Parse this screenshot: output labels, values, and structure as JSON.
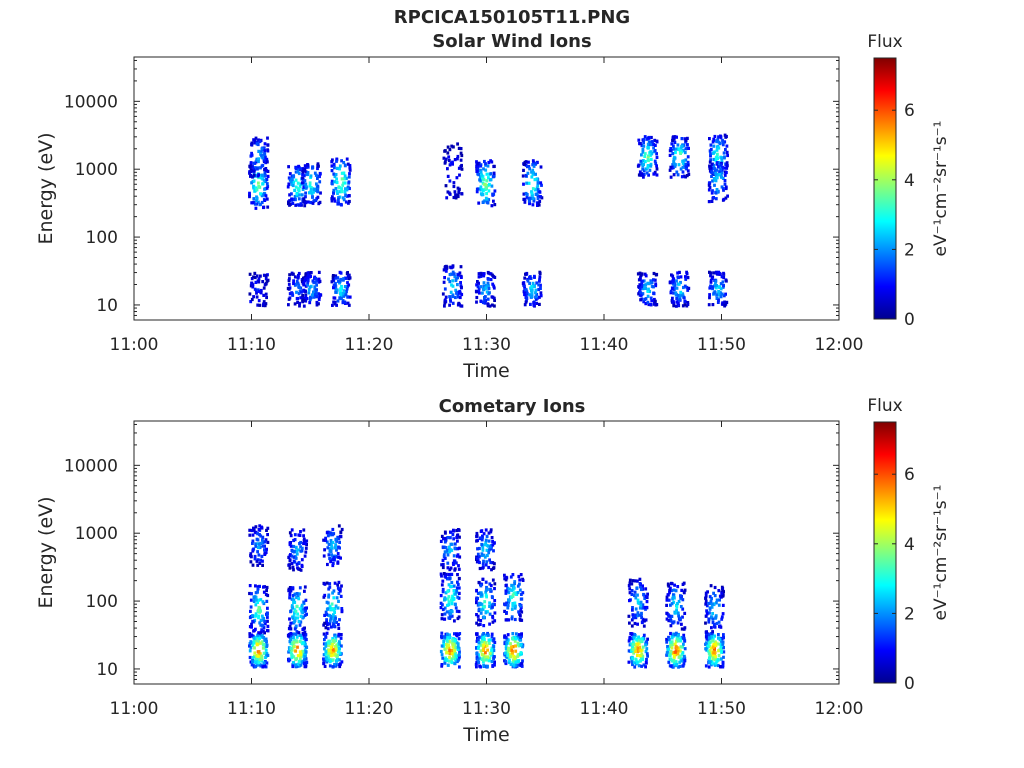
{
  "title": "RPCICA150105T11.PNG",
  "colors": {
    "axis": "#262626",
    "colormap": [
      "#00008f",
      "#0000ff",
      "#0080ff",
      "#00ffff",
      "#80ff80",
      "#ffff00",
      "#ff8000",
      "#ff0000",
      "#800000"
    ]
  },
  "chart_data": [
    {
      "type": "heatmap",
      "title": "Solar Wind Ions",
      "xlabel": "Time",
      "ylabel": "Energy (eV)",
      "x_ticks": [
        "11:00",
        "11:10",
        "11:20",
        "11:30",
        "11:40",
        "11:50",
        "12:00"
      ],
      "xlim_minutes": [
        0,
        60
      ],
      "y_ticks": [
        "10",
        "100",
        "1000",
        "10000"
      ],
      "yscale": "log",
      "ylim": [
        6,
        45000
      ],
      "colorbar": {
        "label": "Flux",
        "unit": "eV⁻¹cm⁻²sr⁻¹s⁻¹",
        "ticks": [
          "0",
          "2",
          "4",
          "6"
        ],
        "range": [
          0,
          7.5
        ]
      },
      "bursts": [
        {
          "t": 10.5,
          "peaks": [
            {
              "e": 620,
              "f": 3.8,
              "w": 0.35
            },
            {
              "e": 1600,
              "f": 2.5,
              "w": 0.3
            },
            {
              "e": 18,
              "f": 1.2,
              "w": 0.25
            }
          ]
        },
        {
          "t": 13.8,
          "peaks": [
            {
              "e": 600,
              "f": 3.6,
              "w": 0.3
            },
            {
              "e": 18,
              "f": 2.0,
              "w": 0.25
            }
          ]
        },
        {
          "t": 15.0,
          "peaks": [
            {
              "e": 650,
              "f": 3.4,
              "w": 0.3
            },
            {
              "e": 18,
              "f": 2.5,
              "w": 0.25
            }
          ]
        },
        {
          "t": 17.5,
          "peaks": [
            {
              "e": 700,
              "f": 4.2,
              "w": 0.35
            },
            {
              "e": 18,
              "f": 3.0,
              "w": 0.25
            }
          ]
        },
        {
          "t": 27.0,
          "peaks": [
            {
              "e": 1000,
              "f": 1.2,
              "w": 0.4
            },
            {
              "e": 20,
              "f": 2.8,
              "w": 0.3
            }
          ]
        },
        {
          "t": 29.8,
          "peaks": [
            {
              "e": 650,
              "f": 4.0,
              "w": 0.35
            },
            {
              "e": 18,
              "f": 2.5,
              "w": 0.25
            }
          ]
        },
        {
          "t": 33.8,
          "peaks": [
            {
              "e": 650,
              "f": 3.5,
              "w": 0.35
            },
            {
              "e": 18,
              "f": 2.8,
              "w": 0.25
            }
          ]
        },
        {
          "t": 43.6,
          "peaks": [
            {
              "e": 1600,
              "f": 3.8,
              "w": 0.3
            },
            {
              "e": 18,
              "f": 2.8,
              "w": 0.25
            }
          ]
        },
        {
          "t": 46.3,
          "peaks": [
            {
              "e": 1600,
              "f": 3.8,
              "w": 0.3
            },
            {
              "e": 18,
              "f": 2.8,
              "w": 0.25
            }
          ]
        },
        {
          "t": 49.6,
          "peaks": [
            {
              "e": 1700,
              "f": 3.5,
              "w": 0.3
            },
            {
              "e": 700,
              "f": 3.0,
              "w": 0.3
            },
            {
              "e": 18,
              "f": 2.8,
              "w": 0.25
            }
          ]
        }
      ]
    },
    {
      "type": "heatmap",
      "title": "Cometary Ions",
      "xlabel": "Time",
      "ylabel": "Energy (eV)",
      "x_ticks": [
        "11:00",
        "11:10",
        "11:20",
        "11:30",
        "11:40",
        "11:50",
        "12:00"
      ],
      "xlim_minutes": [
        0,
        60
      ],
      "y_ticks": [
        "10",
        "100",
        "1000",
        "10000"
      ],
      "yscale": "log",
      "ylim": [
        6,
        45000
      ],
      "colorbar": {
        "label": "Flux",
        "unit": "eV⁻¹cm⁻²sr⁻¹s⁻¹",
        "ticks": [
          "0",
          "2",
          "4",
          "6"
        ],
        "range": [
          0,
          7.5
        ]
      },
      "bursts": [
        {
          "t": 10.5,
          "peaks": [
            {
              "e": 20,
              "f": 6.2,
              "w": 0.25
            },
            {
              "e": 80,
              "f": 3.8,
              "w": 0.35
            },
            {
              "e": 700,
              "f": 2.2,
              "w": 0.3
            }
          ]
        },
        {
          "t": 13.8,
          "peaks": [
            {
              "e": 20,
              "f": 6.3,
              "w": 0.25
            },
            {
              "e": 80,
              "f": 3.6,
              "w": 0.35
            },
            {
              "e": 600,
              "f": 2.4,
              "w": 0.3
            }
          ]
        },
        {
          "t": 16.8,
          "peaks": [
            {
              "e": 20,
              "f": 6.0,
              "w": 0.25
            },
            {
              "e": 90,
              "f": 3.4,
              "w": 0.35
            },
            {
              "e": 700,
              "f": 2.6,
              "w": 0.3
            }
          ]
        },
        {
          "t": 26.8,
          "peaks": [
            {
              "e": 20,
              "f": 6.3,
              "w": 0.25
            },
            {
              "e": 120,
              "f": 3.8,
              "w": 0.35
            },
            {
              "e": 600,
              "f": 2.6,
              "w": 0.3
            }
          ]
        },
        {
          "t": 29.8,
          "peaks": [
            {
              "e": 20,
              "f": 6.2,
              "w": 0.25
            },
            {
              "e": 100,
              "f": 3.5,
              "w": 0.35
            },
            {
              "e": 600,
              "f": 2.8,
              "w": 0.3
            }
          ]
        },
        {
          "t": 32.2,
          "peaks": [
            {
              "e": 20,
              "f": 6.5,
              "w": 0.25
            },
            {
              "e": 120,
              "f": 3.6,
              "w": 0.35
            }
          ]
        },
        {
          "t": 42.8,
          "peaks": [
            {
              "e": 20,
              "f": 6.2,
              "w": 0.25
            },
            {
              "e": 100,
              "f": 2.8,
              "w": 0.35
            }
          ]
        },
        {
          "t": 46.0,
          "peaks": [
            {
              "e": 20,
              "f": 6.5,
              "w": 0.25
            },
            {
              "e": 90,
              "f": 3.0,
              "w": 0.35
            }
          ]
        },
        {
          "t": 49.3,
          "peaks": [
            {
              "e": 20,
              "f": 6.3,
              "w": 0.25
            },
            {
              "e": 80,
              "f": 2.8,
              "w": 0.35
            }
          ]
        }
      ]
    }
  ]
}
